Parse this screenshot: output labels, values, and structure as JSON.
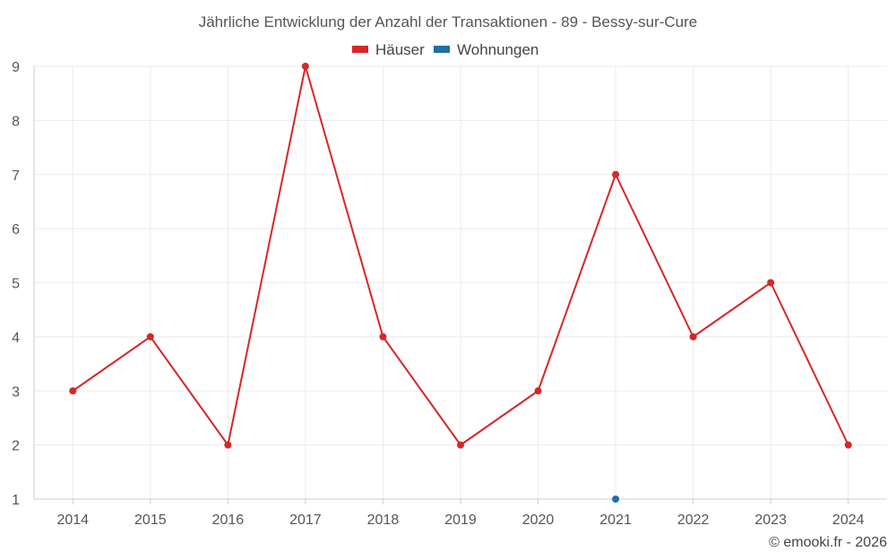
{
  "chart_data": {
    "type": "line",
    "title": "Jährliche Entwicklung der Anzahl der Transaktionen - 89 - Bessy-sur-Cure",
    "categories": [
      "2014",
      "2015",
      "2016",
      "2017",
      "2018",
      "2019",
      "2020",
      "2021",
      "2022",
      "2023",
      "2024"
    ],
    "series": [
      {
        "name": "Häuser",
        "color": "#d62728",
        "values": [
          3,
          4,
          2,
          9,
          4,
          2,
          3,
          7,
          4,
          5,
          2
        ]
      },
      {
        "name": "Wohnungen",
        "color": "#1f6fa8",
        "values": [
          null,
          null,
          null,
          null,
          null,
          null,
          null,
          1,
          null,
          null,
          null
        ]
      }
    ],
    "ylim": [
      1,
      9
    ],
    "yticks": [
      "1",
      "2",
      "3",
      "4",
      "5",
      "6",
      "7",
      "8",
      "9"
    ],
    "grid": true,
    "legend": "top-center"
  },
  "credit": "© emooki.fr - 2026"
}
